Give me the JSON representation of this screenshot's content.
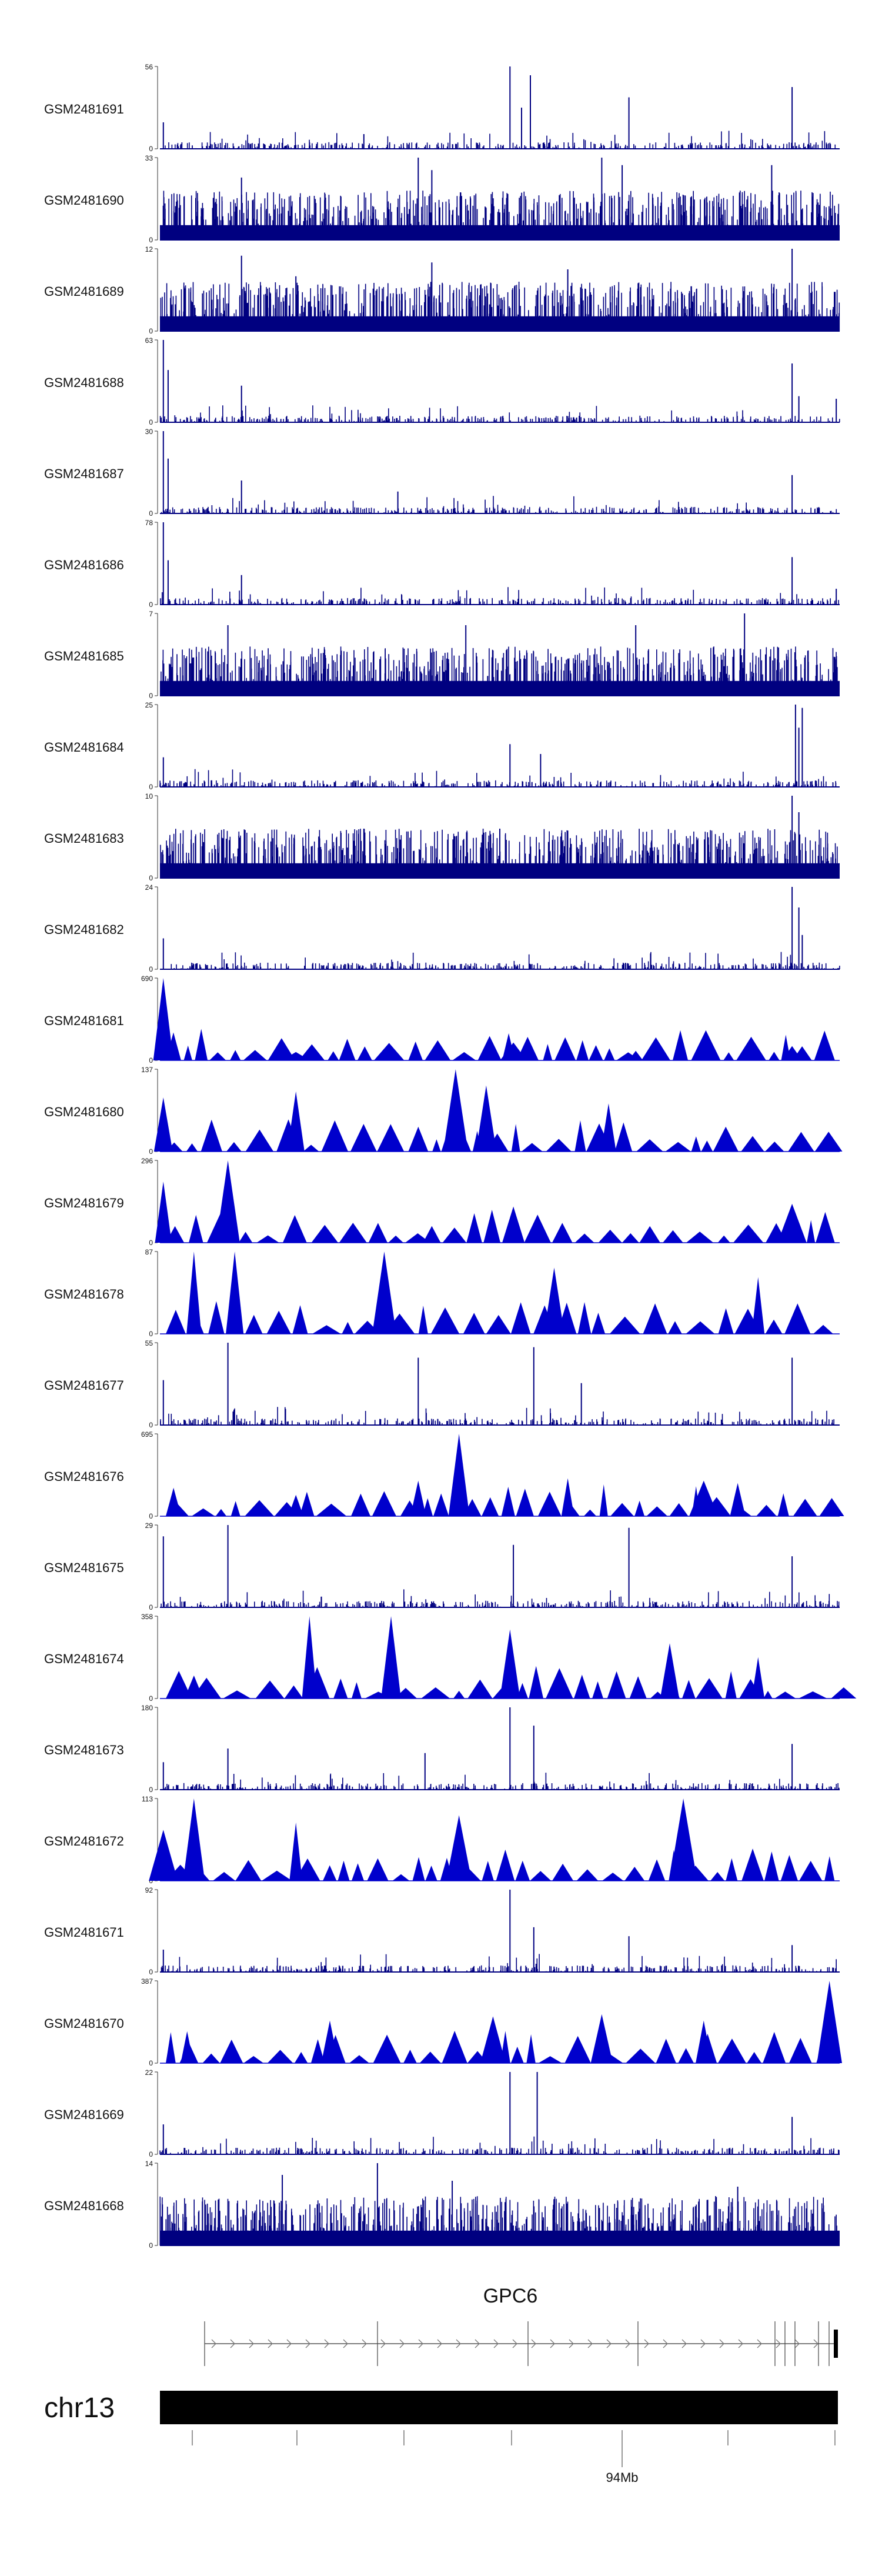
{
  "chart_data": {
    "type": "area",
    "title": "",
    "xlabel": "",
    "ylabel": "",
    "grid": false,
    "legend": "none",
    "colors": {
      "signal": "#0000cc",
      "signal_dark": "#000080",
      "gene": "#555555",
      "chrom": "#000000"
    },
    "tracks": [
      {
        "name": "GSM2481691",
        "ymax": 56,
        "style": "sparse",
        "peaks": [
          [
            0.515,
            56
          ],
          [
            0.532,
            28
          ],
          [
            0.545,
            50
          ],
          [
            0.69,
            35
          ],
          [
            0.93,
            42
          ],
          [
            0.005,
            18
          ],
          [
            0.3,
            10
          ]
        ]
      },
      {
        "name": "GSM2481690",
        "ymax": 33,
        "style": "dense",
        "peaks": [
          [
            0.38,
            33
          ],
          [
            0.65,
            33
          ],
          [
            0.68,
            30
          ],
          [
            0.4,
            28
          ],
          [
            0.12,
            25
          ],
          [
            0.9,
            30
          ]
        ]
      },
      {
        "name": "GSM2481689",
        "ymax": 12,
        "style": "dense",
        "peaks": [
          [
            0.93,
            12
          ],
          [
            0.12,
            11
          ],
          [
            0.4,
            10
          ],
          [
            0.6,
            9
          ],
          [
            0.2,
            8
          ]
        ]
      },
      {
        "name": "GSM2481688",
        "ymax": 63,
        "style": "sparse",
        "peaks": [
          [
            0.005,
            63
          ],
          [
            0.012,
            40
          ],
          [
            0.12,
            28
          ],
          [
            0.93,
            45
          ],
          [
            0.94,
            20
          ],
          [
            0.995,
            18
          ]
        ]
      },
      {
        "name": "GSM2481687",
        "ymax": 30,
        "style": "sparse",
        "peaks": [
          [
            0.005,
            30
          ],
          [
            0.012,
            20
          ],
          [
            0.12,
            12
          ],
          [
            0.93,
            14
          ],
          [
            0.35,
            8
          ]
        ]
      },
      {
        "name": "GSM2481686",
        "ymax": 78,
        "style": "sparse",
        "peaks": [
          [
            0.005,
            78
          ],
          [
            0.012,
            42
          ],
          [
            0.12,
            28
          ],
          [
            0.93,
            45
          ],
          [
            0.995,
            15
          ]
        ]
      },
      {
        "name": "GSM2481685",
        "ymax": 7,
        "style": "dense",
        "peaks": [
          [
            0.86,
            7
          ],
          [
            0.1,
            6
          ],
          [
            0.45,
            6
          ],
          [
            0.7,
            6
          ]
        ]
      },
      {
        "name": "GSM2481684",
        "ymax": 25,
        "style": "sparse",
        "peaks": [
          [
            0.935,
            25
          ],
          [
            0.945,
            24
          ],
          [
            0.94,
            18
          ],
          [
            0.515,
            13
          ],
          [
            0.56,
            10
          ],
          [
            0.005,
            9
          ]
        ]
      },
      {
        "name": "GSM2481683",
        "ymax": 10,
        "style": "dense",
        "peaks": [
          [
            0.93,
            10
          ],
          [
            0.94,
            8
          ],
          [
            0.3,
            6
          ],
          [
            0.5,
            6
          ]
        ]
      },
      {
        "name": "GSM2481682",
        "ymax": 24,
        "style": "sparse",
        "peaks": [
          [
            0.93,
            24
          ],
          [
            0.94,
            18
          ],
          [
            0.945,
            10
          ],
          [
            0.005,
            9
          ]
        ]
      },
      {
        "name": "GSM2481681",
        "ymax": 690,
        "style": "triangles",
        "peaks": [
          [
            0.005,
            690
          ],
          [
            0.52,
            150
          ],
          [
            0.93,
            120
          ],
          [
            0.2,
            70
          ],
          [
            0.7,
            80
          ]
        ]
      },
      {
        "name": "GSM2481680",
        "ymax": 137,
        "style": "triangles",
        "peaks": [
          [
            0.435,
            137
          ],
          [
            0.2,
            100
          ],
          [
            0.48,
            110
          ],
          [
            0.005,
            90
          ],
          [
            0.66,
            80
          ]
        ]
      },
      {
        "name": "GSM2481679",
        "ymax": 296,
        "style": "triangles",
        "peaks": [
          [
            0.1,
            296
          ],
          [
            0.005,
            220
          ],
          [
            0.52,
            130
          ],
          [
            0.93,
            140
          ],
          [
            0.4,
            60
          ]
        ]
      },
      {
        "name": "GSM2481678",
        "ymax": 87,
        "style": "triangles",
        "peaks": [
          [
            0.05,
            87
          ],
          [
            0.11,
            87
          ],
          [
            0.33,
            87
          ],
          [
            0.58,
            70
          ],
          [
            0.88,
            60
          ]
        ]
      },
      {
        "name": "GSM2481677",
        "ymax": 55,
        "style": "sparse",
        "peaks": [
          [
            0.1,
            55
          ],
          [
            0.38,
            45
          ],
          [
            0.55,
            52
          ],
          [
            0.62,
            28
          ],
          [
            0.93,
            45
          ],
          [
            0.005,
            30
          ]
        ]
      },
      {
        "name": "GSM2481676",
        "ymax": 695,
        "style": "triangles",
        "peaks": [
          [
            0.44,
            695
          ],
          [
            0.02,
            240
          ],
          [
            0.2,
            180
          ],
          [
            0.38,
            300
          ],
          [
            0.6,
            320
          ],
          [
            0.8,
            300
          ],
          [
            0.85,
            280
          ]
        ]
      },
      {
        "name": "GSM2481675",
        "ymax": 29,
        "style": "sparse",
        "peaks": [
          [
            0.1,
            29
          ],
          [
            0.69,
            28
          ],
          [
            0.52,
            22
          ],
          [
            0.005,
            25
          ],
          [
            0.93,
            18
          ]
        ]
      },
      {
        "name": "GSM2481674",
        "ymax": 358,
        "style": "triangles",
        "peaks": [
          [
            0.22,
            358
          ],
          [
            0.34,
            358
          ],
          [
            0.515,
            300
          ],
          [
            0.75,
            240
          ],
          [
            0.88,
            180
          ],
          [
            0.05,
            100
          ]
        ]
      },
      {
        "name": "GSM2481673",
        "ymax": 180,
        "style": "sparse",
        "peaks": [
          [
            0.515,
            180
          ],
          [
            0.55,
            140
          ],
          [
            0.1,
            90
          ],
          [
            0.39,
            80
          ],
          [
            0.93,
            100
          ],
          [
            0.005,
            60
          ]
        ]
      },
      {
        "name": "GSM2481672",
        "ymax": 113,
        "style": "triangles",
        "peaks": [
          [
            0.05,
            113
          ],
          [
            0.77,
            113
          ],
          [
            0.44,
            90
          ],
          [
            0.2,
            80
          ],
          [
            0.005,
            70
          ]
        ]
      },
      {
        "name": "GSM2481671",
        "ymax": 92,
        "style": "sparse",
        "peaks": [
          [
            0.515,
            92
          ],
          [
            0.55,
            50
          ],
          [
            0.69,
            40
          ],
          [
            0.93,
            30
          ],
          [
            0.005,
            25
          ]
        ]
      },
      {
        "name": "GSM2481670",
        "ymax": 387,
        "style": "triangles",
        "peaks": [
          [
            0.985,
            387
          ],
          [
            0.25,
            200
          ],
          [
            0.49,
            220
          ],
          [
            0.65,
            230
          ],
          [
            0.8,
            200
          ],
          [
            0.04,
            150
          ]
        ]
      },
      {
        "name": "GSM2481669",
        "ymax": 22,
        "style": "sparse",
        "peaks": [
          [
            0.515,
            22
          ],
          [
            0.555,
            22
          ],
          [
            0.93,
            10
          ],
          [
            0.005,
            8
          ]
        ]
      },
      {
        "name": "GSM2481668",
        "ymax": 14,
        "style": "dense",
        "peaks": [
          [
            0.32,
            14
          ],
          [
            0.18,
            12
          ],
          [
            0.43,
            11
          ],
          [
            0.85,
            10
          ]
        ]
      }
    ],
    "gene": {
      "name": "GPC6",
      "strand": "+"
    },
    "chromosome": {
      "name": "chr13",
      "tick_label": "94Mb"
    }
  }
}
